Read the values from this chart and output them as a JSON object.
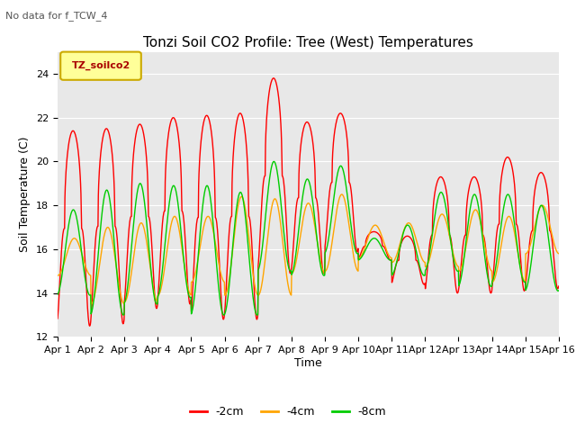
{
  "title": "Tonzi Soil CO2 Profile: Tree (West) Temperatures",
  "subtitle": "No data for f_TCW_4",
  "xlabel": "Time",
  "ylabel": "Soil Temperature (C)",
  "ylim": [
    12,
    25
  ],
  "xlim_days": 15,
  "x_tick_labels": [
    "Apr 1",
    "Apr 2",
    "Apr 3",
    "Apr 4",
    "Apr 5",
    "Apr 6",
    "Apr 7",
    "Apr 8",
    "Apr 9",
    "Apr 10",
    "Apr 11",
    "Apr 12",
    "Apr 13",
    "Apr 14",
    "Apr 15",
    "Apr 16"
  ],
  "legend_label_2cm": "-2cm",
  "legend_label_4cm": "-4cm",
  "legend_label_8cm": "-8cm",
  "color_2cm": "#ff0000",
  "color_4cm": "#ffa500",
  "color_8cm": "#00cc00",
  "legend_box_label": "TZ_soilco2",
  "legend_box_color": "#ffff99",
  "legend_box_border": "#ccaa00",
  "bg_color": "#e8e8e8",
  "fig_bg_color": "#ffffff",
  "linewidth": 1.0,
  "title_fontsize": 11,
  "axis_label_fontsize": 9,
  "tick_fontsize": 8,
  "annotation_fontsize": 8
}
